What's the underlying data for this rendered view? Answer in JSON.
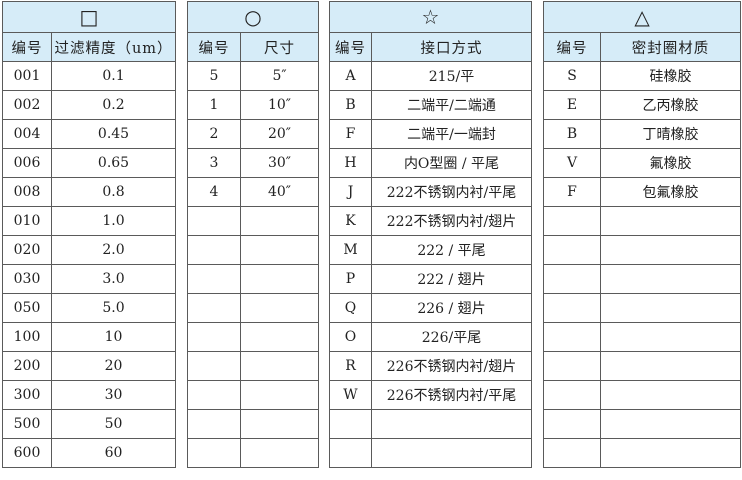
{
  "tables": [
    {
      "symbol": "□",
      "symbol_name": "square-icon",
      "col_widths": [
        49,
        124
      ],
      "headers": [
        "编号",
        "过滤精度（um）"
      ],
      "rows": [
        [
          "001",
          "0.1"
        ],
        [
          "002",
          "0.2"
        ],
        [
          "004",
          "0.45"
        ],
        [
          "006",
          "0.65"
        ],
        [
          "008",
          "0.8"
        ],
        [
          "010",
          "1.0"
        ],
        [
          "020",
          "2.0"
        ],
        [
          "030",
          "3.0"
        ],
        [
          "050",
          "5.0"
        ],
        [
          "100",
          "10"
        ],
        [
          "200",
          "20"
        ],
        [
          "300",
          "30"
        ],
        [
          "500",
          "50"
        ],
        [
          "600",
          "60"
        ]
      ]
    },
    {
      "symbol": "○",
      "symbol_name": "circle-icon",
      "col_widths": [
        53,
        78
      ],
      "headers": [
        "编号",
        "尺寸"
      ],
      "rows": [
        [
          "5",
          "5″"
        ],
        [
          "1",
          "10″"
        ],
        [
          "2",
          "20″"
        ],
        [
          "3",
          "30″"
        ],
        [
          "4",
          "40″"
        ],
        [
          "",
          ""
        ],
        [
          "",
          ""
        ],
        [
          "",
          ""
        ],
        [
          "",
          ""
        ],
        [
          "",
          ""
        ],
        [
          "",
          ""
        ],
        [
          "",
          ""
        ],
        [
          "",
          ""
        ],
        [
          "",
          ""
        ]
      ]
    },
    {
      "symbol": "☆",
      "symbol_name": "star-icon",
      "col_widths": [
        42,
        160
      ],
      "headers": [
        "编号",
        "接口方式"
      ],
      "rows": [
        [
          "A",
          "215/平"
        ],
        [
          "B",
          "二端平/二端通"
        ],
        [
          "F",
          "二端平/一端封"
        ],
        [
          "H",
          "内O型圈 / 平尾"
        ],
        [
          "J",
          "222不锈钢内衬/平尾"
        ],
        [
          "K",
          "222不锈钢内衬/翅片"
        ],
        [
          "M",
          "222 / 平尾"
        ],
        [
          "P",
          "222 / 翅片"
        ],
        [
          "Q",
          "226 / 翅片"
        ],
        [
          "O",
          "226/平尾"
        ],
        [
          "R",
          "226不锈钢内衬/翅片"
        ],
        [
          "W",
          "226不锈钢内衬/平尾"
        ],
        [
          "",
          ""
        ],
        [
          "",
          ""
        ]
      ]
    },
    {
      "symbol": "△",
      "symbol_name": "triangle-icon",
      "col_widths": [
        57,
        140
      ],
      "headers": [
        "编号",
        "密封圈材质"
      ],
      "rows": [
        [
          "S",
          "硅橡胶"
        ],
        [
          "E",
          "乙丙橡胶"
        ],
        [
          "B",
          "丁晴橡胶"
        ],
        [
          "V",
          "氟橡胶"
        ],
        [
          "F",
          "包氟橡胶"
        ],
        [
          "",
          ""
        ],
        [
          "",
          ""
        ],
        [
          "",
          ""
        ],
        [
          "",
          ""
        ],
        [
          "",
          ""
        ],
        [
          "",
          ""
        ],
        [
          "",
          ""
        ],
        [
          "",
          ""
        ],
        [
          "",
          ""
        ]
      ]
    }
  ]
}
